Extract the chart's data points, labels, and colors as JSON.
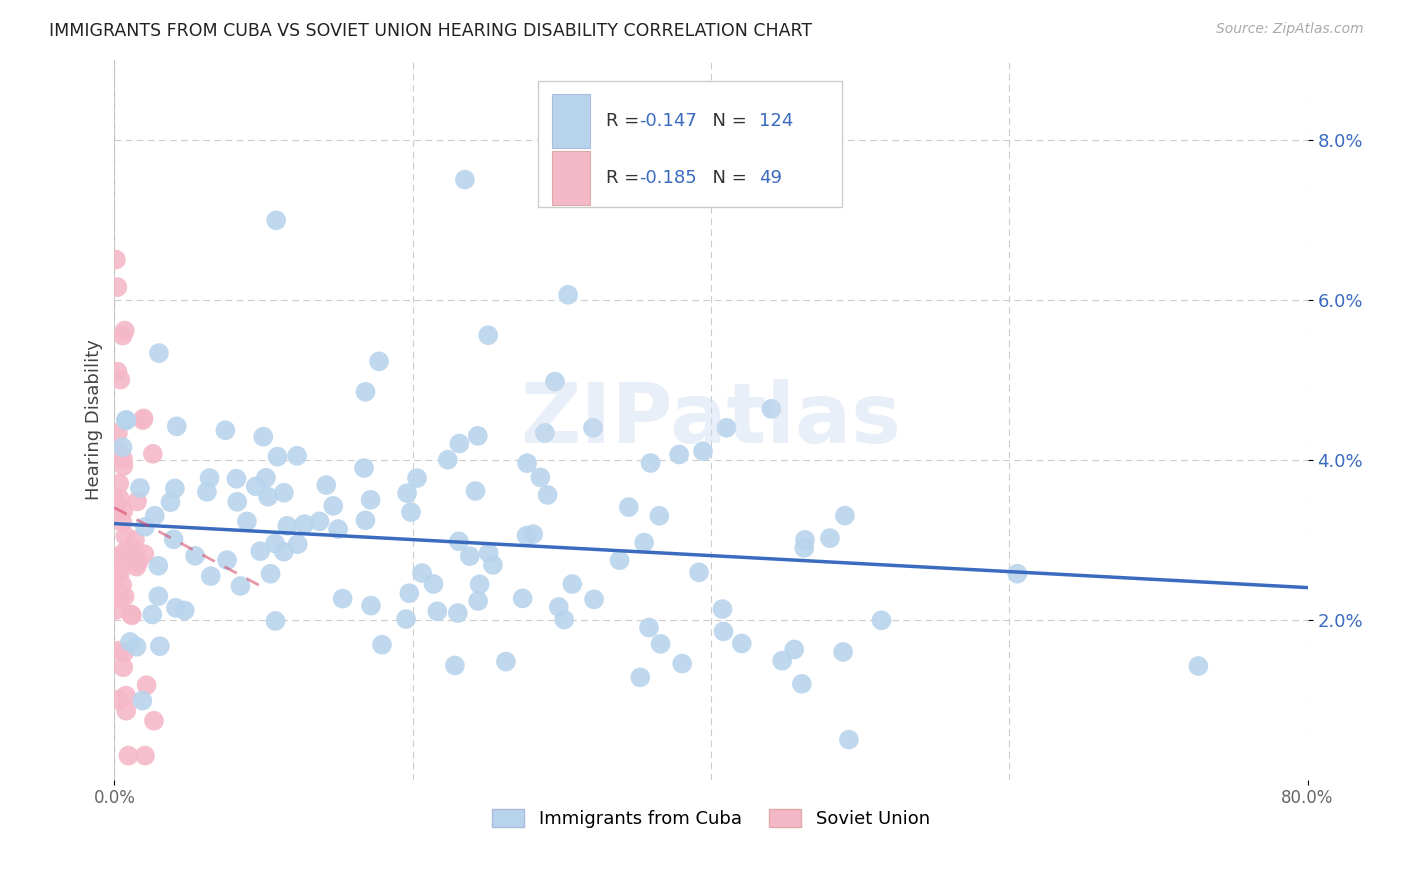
{
  "title": "IMMIGRANTS FROM CUBA VS SOVIET UNION HEARING DISABILITY CORRELATION CHART",
  "source": "Source: ZipAtlas.com",
  "ylabel": "Hearing Disability",
  "yticks": [
    0.02,
    0.04,
    0.06,
    0.08
  ],
  "ytick_labels": [
    "2.0%",
    "4.0%",
    "6.0%",
    "8.0%"
  ],
  "xlim": [
    0.0,
    0.8
  ],
  "ylim": [
    0.0,
    0.09
  ],
  "cuba_R": -0.147,
  "cuba_N": 124,
  "soviet_R": -0.185,
  "soviet_N": 49,
  "cuba_color": "#b8d4ed",
  "soviet_color": "#f5b8c8",
  "cuba_line_color": "#3a6bbf",
  "soviet_line_color": "#d44060",
  "legend_label_color": "#3a6bbf",
  "legend_text_color": "#333333",
  "watermark": "ZIPatlas",
  "legend_entries": [
    {
      "label": "Immigrants from Cuba",
      "color": "#b8d4ed"
    },
    {
      "label": "Soviet Union",
      "color": "#f5b8c8"
    }
  ],
  "cuba_line_start_y": 0.032,
  "cuba_line_end_y": 0.024,
  "soviet_line_start_y": 0.034,
  "soviet_line_end_y": 0.024,
  "soviet_line_end_x": 0.1
}
